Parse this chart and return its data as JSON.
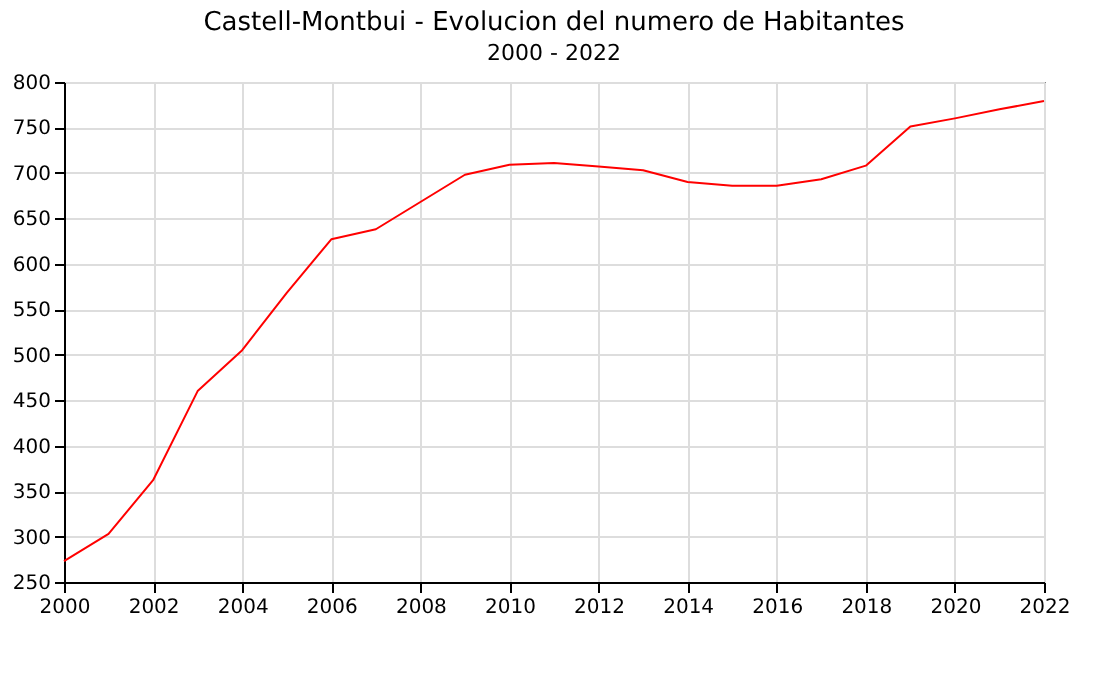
{
  "chart_data": {
    "type": "line",
    "title": "Castell-Montbui - Evolucion del numero de Habitantes",
    "subtitle": "2000 - 2022",
    "x": [
      2000,
      2001,
      2002,
      2003,
      2004,
      2005,
      2006,
      2007,
      2008,
      2009,
      2010,
      2011,
      2012,
      2013,
      2014,
      2015,
      2016,
      2017,
      2018,
      2019,
      2020,
      2021,
      2022
    ],
    "series": [
      {
        "color": "#ff0000",
        "values": [
          273,
          303,
          362,
          460,
          505,
          568,
          627,
          638,
          668,
          698,
          709,
          711,
          707,
          703,
          690,
          686,
          686,
          693,
          708,
          751,
          760,
          770,
          779
        ]
      }
    ],
    "xlim": [
      2000,
      2022
    ],
    "xticks": [
      2000,
      2002,
      2004,
      2006,
      2008,
      2010,
      2012,
      2014,
      2016,
      2018,
      2020,
      2022
    ],
    "ylim": [
      250,
      800
    ],
    "yticks": [
      250,
      300,
      350,
      400,
      450,
      500,
      550,
      600,
      650,
      700,
      750,
      800
    ],
    "grid": true,
    "marker": "none",
    "line_style": "solid"
  }
}
